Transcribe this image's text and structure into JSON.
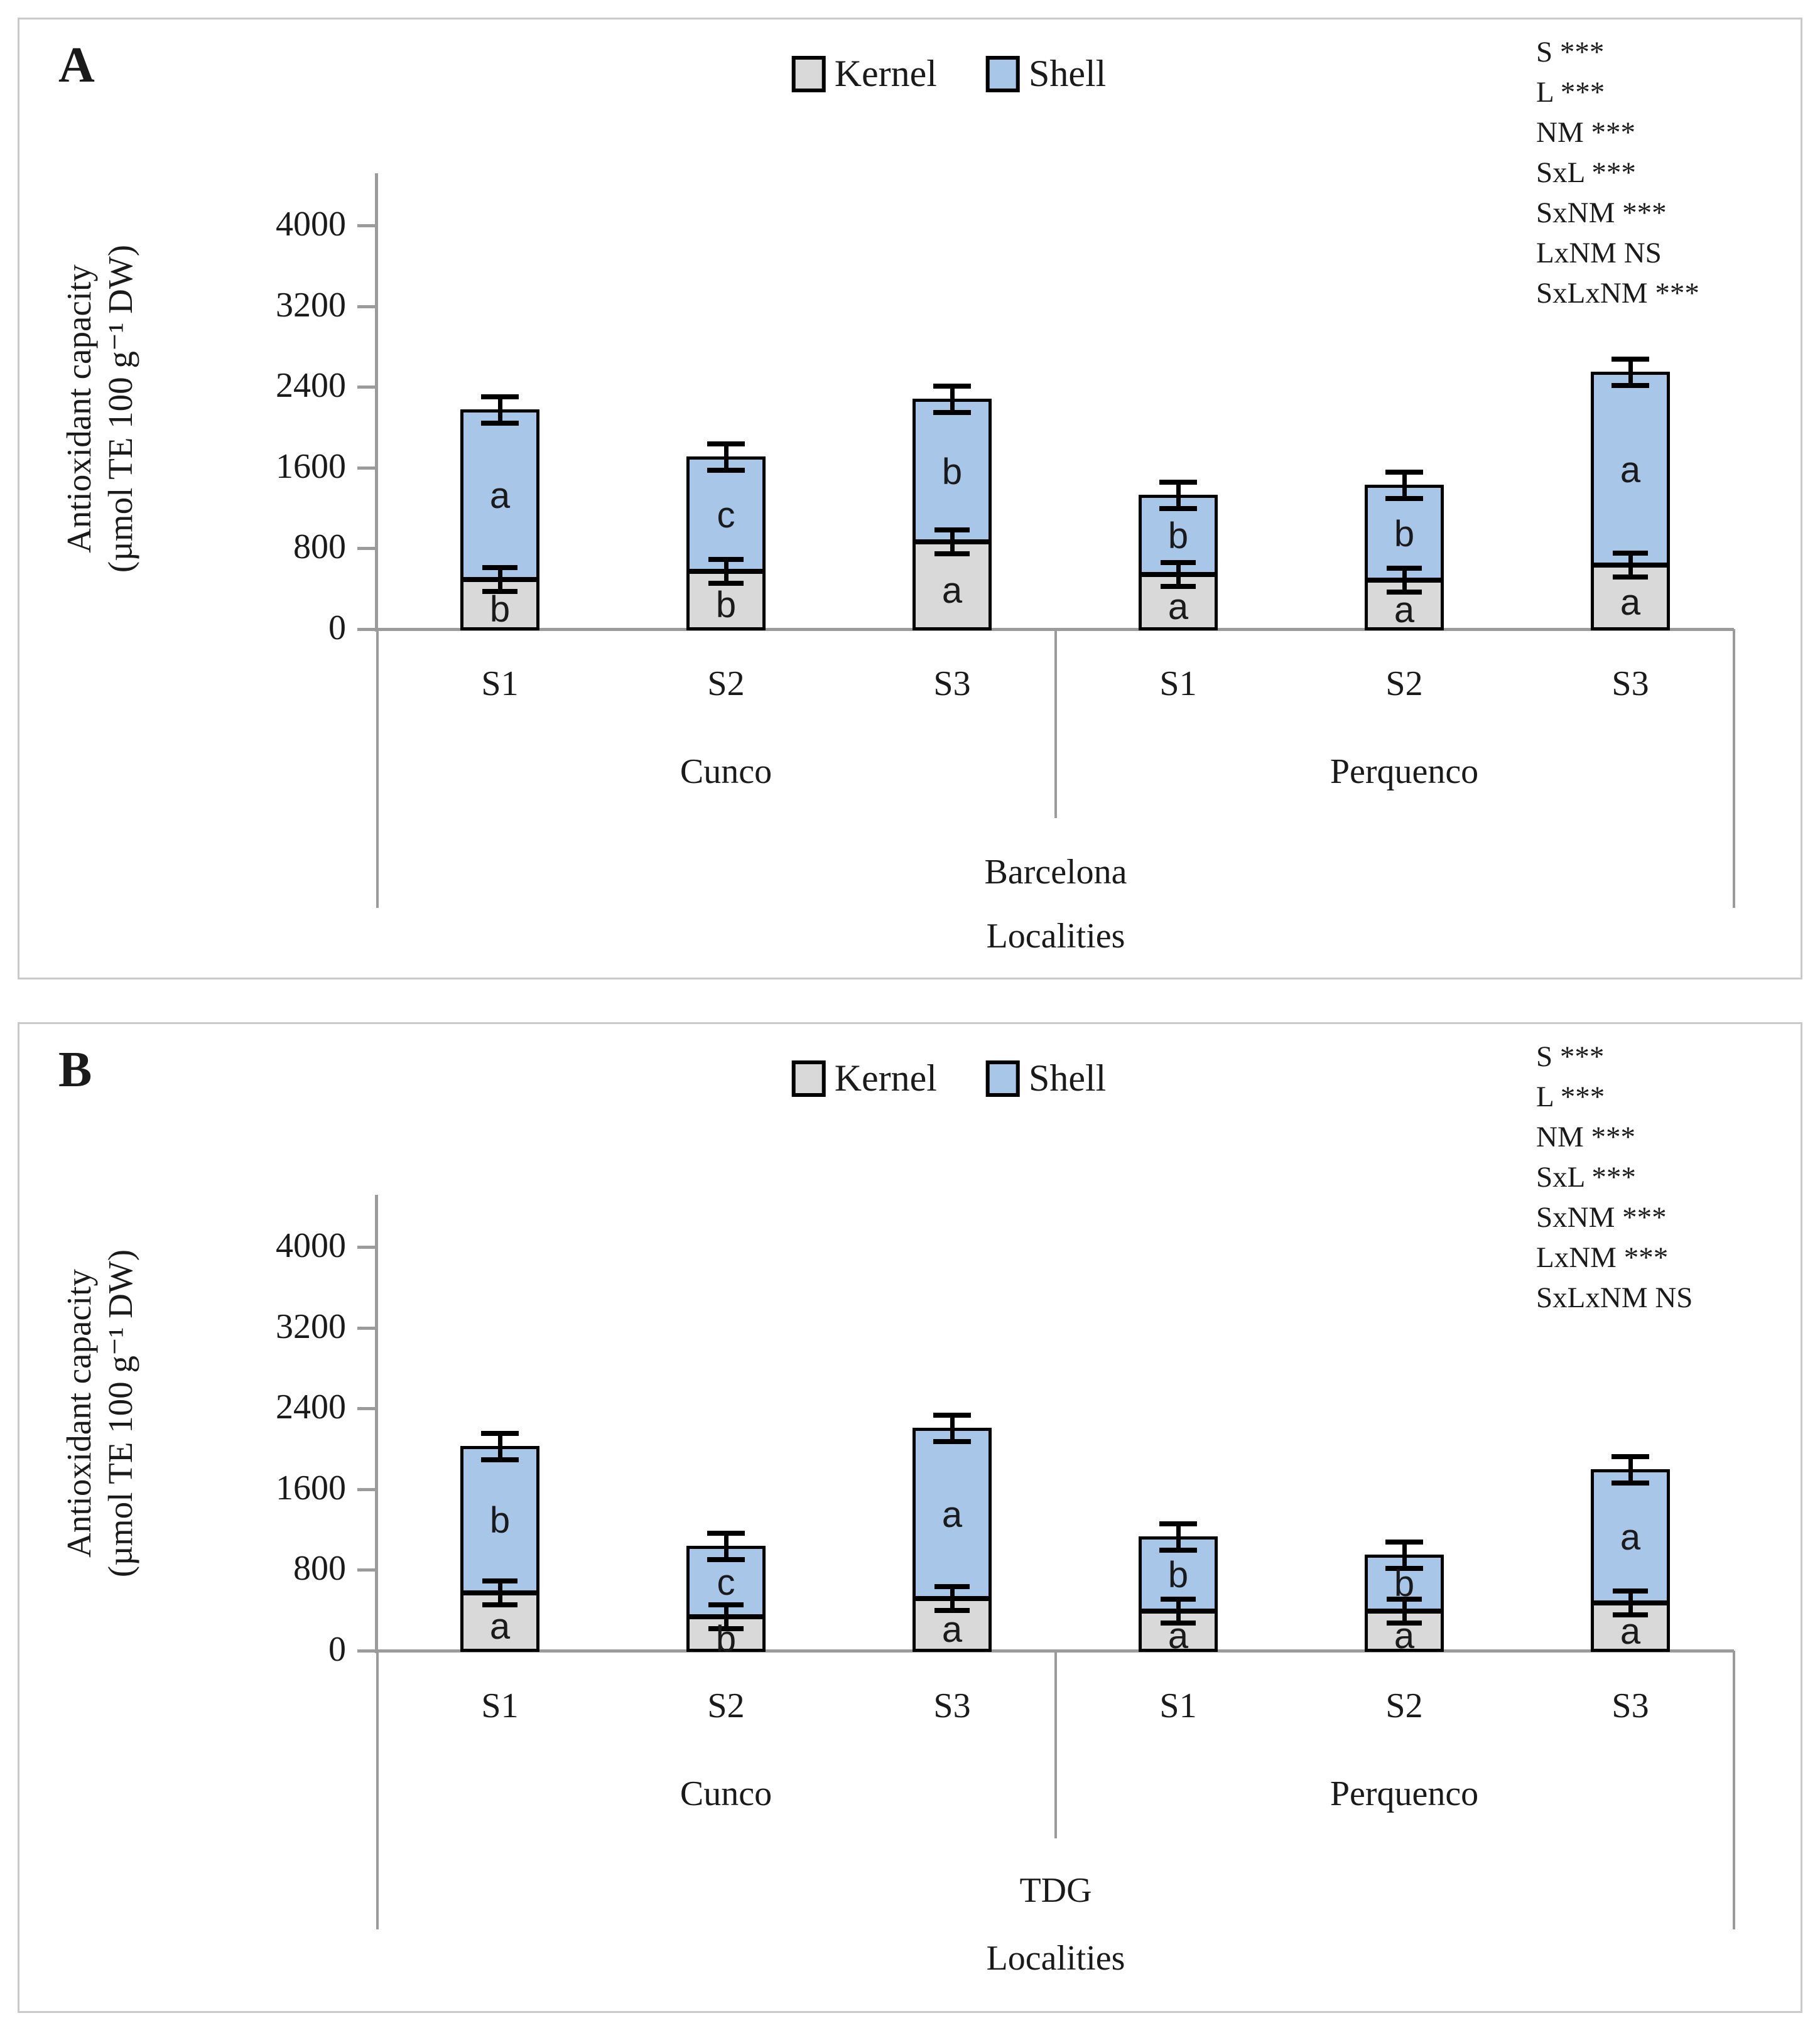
{
  "figure": {
    "ylabel_line1": "Antioxidant capacity",
    "ylabel_line2": "(µmol TE 100 g⁻¹ DW)",
    "xlabel": "Localities",
    "colors": {
      "kernel": "#d9d9d9",
      "shell": "#a8c6e8",
      "bar_border": "#000000",
      "axis": "#9b9b9b",
      "panel_border": "#c9c9c9"
    }
  },
  "chart_data": [
    {
      "type": "stacked-bar",
      "panel_letter": "A",
      "variety": "Barcelona",
      "xlabel": "Localities",
      "ylabel_line1": "Antioxidant capacity",
      "ylabel_line2": "(µmol TE 100 g⁻¹ DW)",
      "ylim": [
        0,
        4400
      ],
      "y_ticks": [
        4000,
        3200,
        2400,
        1600,
        800,
        0
      ],
      "legend": [
        {
          "label": "Kernel",
          "color": "#d9d9d9"
        },
        {
          "label": "Shell",
          "color": "#a8c6e8"
        }
      ],
      "annotations": [
        "S ***",
        "L ***",
        "NM ***",
        "SxL ***",
        "SxNM ***",
        "LxNM NS",
        "SxLxNM ***"
      ],
      "groups": [
        {
          "label": "Cunco",
          "bars": [
            {
              "season": "S1",
              "kernel": 500,
              "shell": 1680,
              "total": 2180,
              "kernel_letter": "b",
              "shell_letter": "a",
              "err_total": 60,
              "err_kernel": 50
            },
            {
              "season": "S2",
              "kernel": 580,
              "shell": 1130,
              "total": 1710,
              "kernel_letter": "b",
              "shell_letter": "c",
              "err_total": 60,
              "err_kernel": 55
            },
            {
              "season": "S3",
              "kernel": 870,
              "shell": 1410,
              "total": 2280,
              "kernel_letter": "a",
              "shell_letter": "b",
              "err_total": 55,
              "err_kernel": 55
            }
          ]
        },
        {
          "label": "Perquenco",
          "bars": [
            {
              "season": "S1",
              "kernel": 550,
              "shell": 780,
              "total": 1330,
              "kernel_letter": "a",
              "shell_letter": "b",
              "err_total": 50,
              "err_kernel": 55
            },
            {
              "season": "S2",
              "kernel": 490,
              "shell": 940,
              "total": 1430,
              "kernel_letter": "a",
              "shell_letter": "b",
              "err_total": 50,
              "err_kernel": 30
            },
            {
              "season": "S3",
              "kernel": 640,
              "shell": 1910,
              "total": 2550,
              "kernel_letter": "a",
              "shell_letter": "a",
              "err_total": 45,
              "err_kernel": 30
            }
          ]
        }
      ]
    },
    {
      "type": "stacked-bar",
      "panel_letter": "B",
      "variety": "TDG",
      "xlabel": "Localities",
      "ylabel_line1": "Antioxidant capacity",
      "ylabel_line2": "(µmol TE 100 g⁻¹ DW)",
      "ylim": [
        0,
        4400
      ],
      "y_ticks": [
        4000,
        3200,
        2400,
        1600,
        800,
        0
      ],
      "legend": [
        {
          "label": "Kernel",
          "color": "#d9d9d9"
        },
        {
          "label": "Shell",
          "color": "#a8c6e8"
        }
      ],
      "annotations": [
        "S ***",
        "L ***",
        "NM ***",
        "SxL ***",
        "SxNM ***",
        "LxNM ***",
        "SxLxNM NS"
      ],
      "groups": [
        {
          "label": "Cunco",
          "bars": [
            {
              "season": "S1",
              "kernel": 580,
              "shell": 1450,
              "total": 2030,
              "kernel_letter": "a",
              "shell_letter": "b",
              "err_total": 55,
              "err_kernel": 60
            },
            {
              "season": "S2",
              "kernel": 340,
              "shell": 700,
              "total": 1040,
              "kernel_letter": "b",
              "shell_letter": "c",
              "err_total": 55,
              "err_kernel": 60
            },
            {
              "season": "S3",
              "kernel": 520,
              "shell": 1690,
              "total": 2210,
              "kernel_letter": "a",
              "shell_letter": "a",
              "err_total": 50,
              "err_kernel": 55
            }
          ]
        },
        {
          "label": "Perquenco",
          "bars": [
            {
              "season": "S1",
              "kernel": 400,
              "shell": 730,
              "total": 1130,
              "kernel_letter": "a",
              "shell_letter": "b",
              "err_total": 50,
              "err_kernel": 45
            },
            {
              "season": "S2",
              "kernel": 400,
              "shell": 550,
              "total": 950,
              "kernel_letter": "a",
              "shell_letter": "b",
              "err_total": 50,
              "err_kernel": 30
            },
            {
              "season": "S3",
              "kernel": 480,
              "shell": 1320,
              "total": 1800,
              "kernel_letter": "a",
              "shell_letter": "a",
              "err_total": 50,
              "err_kernel": 35
            }
          ]
        }
      ]
    }
  ]
}
